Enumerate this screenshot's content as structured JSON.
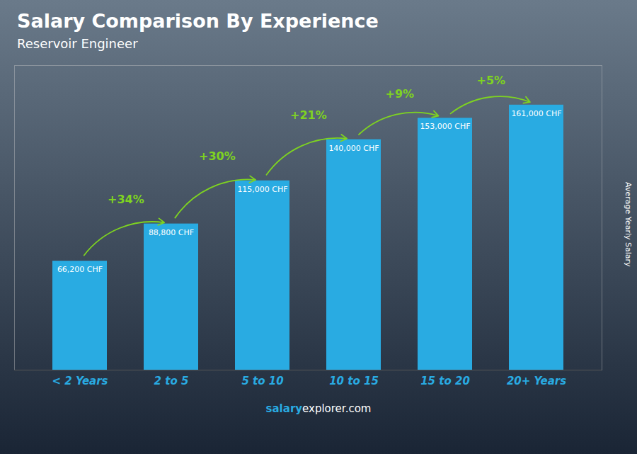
{
  "chart_data": {
    "type": "bar",
    "title": "Salary Comparison By Experience",
    "subtitle": "Reservoir Engineer",
    "ylabel": "Average Yearly Salary",
    "categories": [
      "< 2 Years",
      "2 to 5",
      "5 to 10",
      "10 to 15",
      "15 to 20",
      "20+ Years"
    ],
    "values": [
      66200,
      88800,
      115000,
      140000,
      153000,
      161000
    ],
    "value_labels": [
      "66,200 CHF",
      "88,800 CHF",
      "115,000 CHF",
      "140,000 CHF",
      "153,000 CHF",
      "161,000 CHF"
    ],
    "data_labels": true,
    "color": "#29ABE2",
    "ylim": [
      0,
      185000
    ],
    "yticks": [],
    "tick_labels": "x",
    "grid": false,
    "annotations": [
      {
        "text": "+34%",
        "from": "< 2 Years",
        "to": "2 to 5",
        "color": "#7ED321"
      },
      {
        "text": "+30%",
        "from": "2 to 5",
        "to": "5 to 10",
        "color": "#7ED321"
      },
      {
        "text": "+21%",
        "from": "5 to 10",
        "to": "10 to 15",
        "color": "#7ED321"
      },
      {
        "text": "+9%",
        "from": "10 to 15",
        "to": "15 to 20",
        "color": "#7ED321"
      },
      {
        "text": "+5%",
        "from": "15 to 20",
        "to": "20+ Years",
        "color": "#7ED321"
      }
    ],
    "footer": [
      "salary",
      "explorer.com"
    ]
  }
}
